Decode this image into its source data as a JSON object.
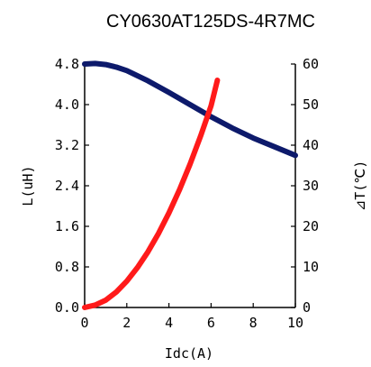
{
  "chart_data": {
    "type": "line",
    "title": "CY0630AT125DS-4R7MC",
    "xlabel": "Idc(A)",
    "ylabel_left": "L(uH)",
    "ylabel_right": "⊿T(℃)",
    "xlim": [
      0,
      10
    ],
    "ylim_left": [
      0,
      4.8
    ],
    "ylim_right": [
      0,
      60
    ],
    "x_ticks": [
      "0",
      "2",
      "4",
      "6",
      "8",
      "10"
    ],
    "y_left_ticks": [
      "0.0",
      "0.8",
      "1.6",
      "2.4",
      "3.2",
      "4.0",
      "4.8"
    ],
    "y_right_ticks": [
      "0",
      "10",
      "20",
      "30",
      "40",
      "50",
      "60"
    ],
    "grid": false,
    "series": [
      {
        "axis": "left",
        "color": "#0d1a6b",
        "x": [
          0,
          0.5,
          1,
          1.5,
          2,
          3,
          4,
          5,
          6,
          7,
          8,
          9,
          10
        ],
        "y": [
          4.8,
          4.81,
          4.79,
          4.74,
          4.67,
          4.47,
          4.24,
          4.0,
          3.76,
          3.54,
          3.34,
          3.17,
          3.0
        ]
      },
      {
        "axis": "right",
        "color": "#ff1a1a",
        "x": [
          0,
          0.5,
          1,
          1.5,
          2,
          2.5,
          3,
          3.5,
          4,
          4.5,
          5,
          5.5,
          6,
          6.3
        ],
        "y": [
          0,
          0.6,
          1.8,
          3.8,
          6.5,
          9.8,
          13.7,
          18.2,
          23.3,
          29.0,
          35.3,
          42.2,
          49.7,
          56.0
        ]
      }
    ]
  }
}
